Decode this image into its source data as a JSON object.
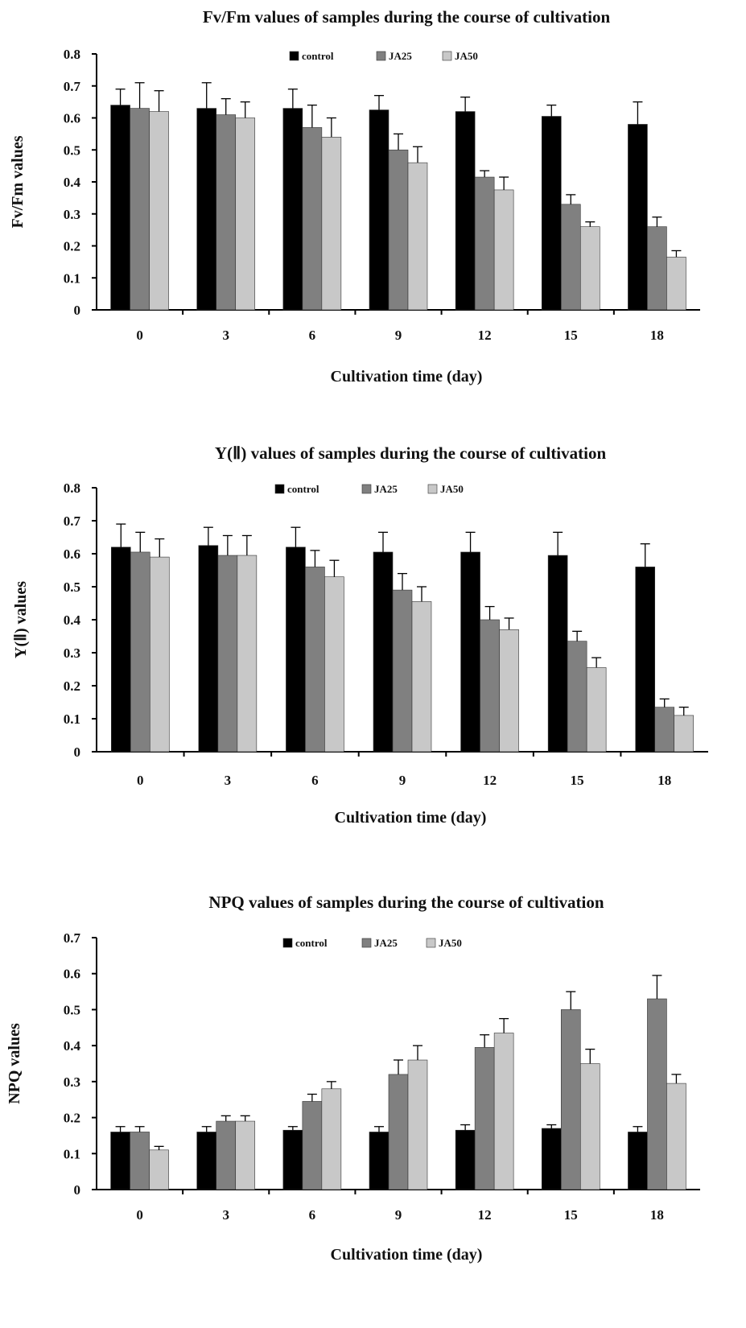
{
  "chart_data": [
    {
      "type": "bar",
      "title": "Fv/Fm values of samples during the course of cultivation",
      "xlabel": "Cultivation time (day)",
      "ylabel": "Fv/Fm values",
      "categories": [
        "0",
        "3",
        "6",
        "9",
        "12",
        "15",
        "18"
      ],
      "ylim": [
        0,
        0.8
      ],
      "yticks": [
        "0",
        "0.1",
        "0.2",
        "0.3",
        "0.4",
        "0.5",
        "0.6",
        "0.7",
        "0.8"
      ],
      "legend_position": "top-center",
      "grid": false,
      "series": [
        {
          "name": "control",
          "color": "#000000",
          "values": [
            0.64,
            0.63,
            0.63,
            0.625,
            0.62,
            0.605,
            0.58
          ],
          "errors": [
            0.05,
            0.08,
            0.06,
            0.045,
            0.045,
            0.035,
            0.07
          ]
        },
        {
          "name": "JA25",
          "color": "#808080",
          "values": [
            0.63,
            0.61,
            0.57,
            0.5,
            0.415,
            0.33,
            0.26
          ],
          "errors": [
            0.08,
            0.05,
            0.07,
            0.05,
            0.02,
            0.03,
            0.03
          ]
        },
        {
          "name": "JA50",
          "color": "#c8c8c8",
          "values": [
            0.62,
            0.6,
            0.54,
            0.46,
            0.375,
            0.26,
            0.165
          ],
          "errors": [
            0.065,
            0.05,
            0.06,
            0.05,
            0.04,
            0.015,
            0.02
          ]
        }
      ]
    },
    {
      "type": "bar",
      "title": "Y(Ⅱ) values of samples during the course of cultivation",
      "xlabel": "Cultivation time (day)",
      "ylabel": "Y(Ⅱ) values",
      "categories": [
        "0",
        "3",
        "6",
        "9",
        "12",
        "15",
        "18"
      ],
      "ylim": [
        0,
        0.8
      ],
      "yticks": [
        "0",
        "0.1",
        "0.2",
        "0.3",
        "0.4",
        "0.5",
        "0.6",
        "0.7",
        "0.8"
      ],
      "legend_position": "top-center",
      "grid": false,
      "series": [
        {
          "name": "control",
          "color": "#000000",
          "values": [
            0.62,
            0.625,
            0.62,
            0.605,
            0.605,
            0.595,
            0.56
          ],
          "errors": [
            0.07,
            0.055,
            0.06,
            0.06,
            0.06,
            0.07,
            0.07
          ]
        },
        {
          "name": "JA25",
          "color": "#808080",
          "values": [
            0.605,
            0.595,
            0.56,
            0.49,
            0.4,
            0.335,
            0.135
          ],
          "errors": [
            0.06,
            0.06,
            0.05,
            0.05,
            0.04,
            0.03,
            0.025
          ]
        },
        {
          "name": "JA50",
          "color": "#c8c8c8",
          "values": [
            0.59,
            0.595,
            0.53,
            0.455,
            0.37,
            0.255,
            0.11
          ],
          "errors": [
            0.055,
            0.06,
            0.05,
            0.045,
            0.035,
            0.03,
            0.025
          ]
        }
      ]
    },
    {
      "type": "bar",
      "title": "NPQ values of samples during the course of cultivation",
      "xlabel": "Cultivation time (day)",
      "ylabel": "NPQ values",
      "categories": [
        "0",
        "3",
        "6",
        "9",
        "12",
        "15",
        "18"
      ],
      "ylim": [
        0,
        0.7
      ],
      "yticks": [
        "0",
        "0.1",
        "0.2",
        "0.3",
        "0.4",
        "0.5",
        "0.6",
        "0.7"
      ],
      "legend_position": "top-center",
      "grid": false,
      "series": [
        {
          "name": "control",
          "color": "#000000",
          "values": [
            0.16,
            0.16,
            0.165,
            0.16,
            0.165,
            0.17,
            0.16
          ],
          "errors": [
            0.015,
            0.015,
            0.01,
            0.015,
            0.015,
            0.01,
            0.015
          ]
        },
        {
          "name": "JA25",
          "color": "#808080",
          "values": [
            0.16,
            0.19,
            0.245,
            0.32,
            0.395,
            0.5,
            0.53
          ],
          "errors": [
            0.015,
            0.015,
            0.02,
            0.04,
            0.035,
            0.05,
            0.065
          ]
        },
        {
          "name": "JA50",
          "color": "#c8c8c8",
          "values": [
            0.11,
            0.19,
            0.28,
            0.36,
            0.435,
            0.35,
            0.295
          ],
          "errors": [
            0.01,
            0.015,
            0.02,
            0.04,
            0.04,
            0.04,
            0.025
          ]
        }
      ]
    }
  ]
}
